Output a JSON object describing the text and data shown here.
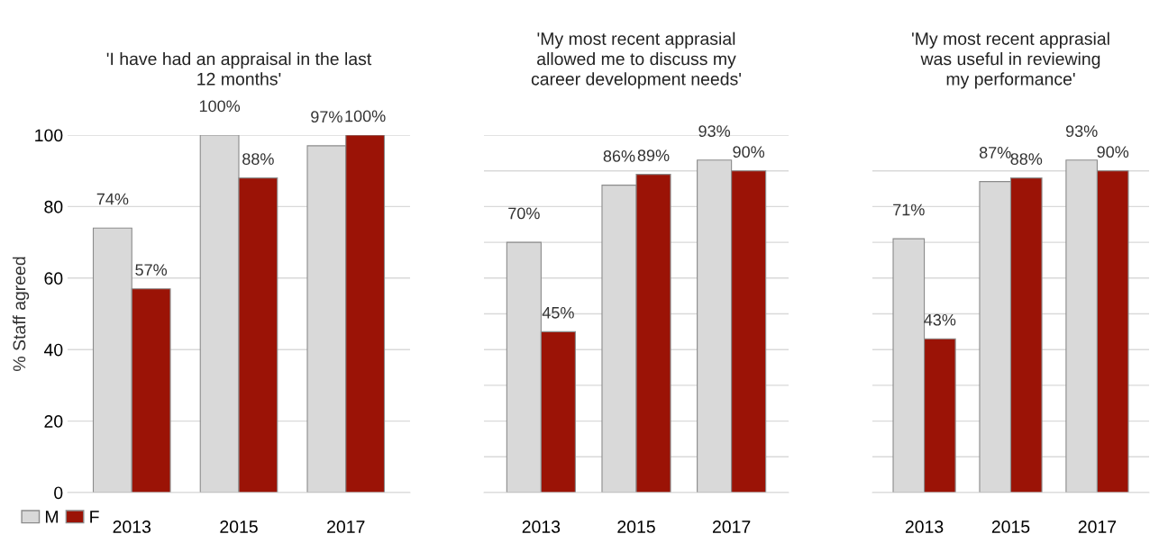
{
  "chart_data": [
    {
      "type": "bar",
      "title": "'I have had an appraisal in the last\n12 months'",
      "ylabel": "% Staff agreed",
      "categories": [
        "2013",
        "2015",
        "2017"
      ],
      "series": [
        {
          "name": "M",
          "color": "#d9d9d9",
          "values": [
            74,
            100,
            97
          ],
          "value_labels": [
            "74%",
            "100%",
            "97%"
          ]
        },
        {
          "name": "F",
          "color": "#9b1306",
          "values": [
            57,
            88,
            100
          ],
          "value_labels": [
            "57%",
            "88%",
            "100%"
          ]
        }
      ],
      "ylim": [
        0,
        100
      ],
      "yticks": [
        0,
        20,
        40,
        60,
        80,
        100
      ],
      "grid": "y",
      "legend": "bottom left"
    },
    {
      "type": "bar",
      "title": "'My most recent apprasial\nallowed me to discuss my\ncareer development needs'",
      "categories": [
        "2013",
        "2015",
        "2017"
      ],
      "series": [
        {
          "color": "#d9d9d9",
          "values": [
            70,
            86,
            93
          ],
          "value_labels": [
            "70%",
            "86%",
            "93%"
          ]
        },
        {
          "color": "#9b1306",
          "values": [
            45,
            89,
            90
          ],
          "value_labels": [
            "45%",
            "89%",
            "90%"
          ]
        }
      ],
      "ylim": [
        0,
        100
      ],
      "yticks": [
        {
          "value": 0,
          "label": null
        },
        {
          "value": 10,
          "label": null
        },
        {
          "value": 20,
          "label": null
        },
        {
          "value": 30,
          "label": null
        },
        {
          "value": 40,
          "label": null
        },
        {
          "value": 50,
          "label": null
        },
        {
          "value": 60,
          "label": null
        },
        {
          "value": 70,
          "label": null
        },
        {
          "value": 80,
          "label": null
        },
        {
          "value": 90,
          "label": null
        },
        {
          "value": 100,
          "label": null
        }
      ],
      "grid": "y",
      "tick_labels": "x"
    },
    {
      "type": "bar",
      "title": "'My most recent apprasial\nwas useful in reviewing\nmy performance'",
      "categories": [
        "2013",
        "2015",
        "2017"
      ],
      "series": [
        {
          "color": "#d9d9d9",
          "values": [
            71,
            87,
            93
          ],
          "value_labels": [
            "71%",
            "87%",
            "93%"
          ]
        },
        {
          "color": "#9b1306",
          "values": [
            43,
            88,
            90
          ],
          "value_labels": [
            "43%",
            "88%",
            "90%"
          ]
        }
      ],
      "ylim": [
        0,
        100
      ],
      "yticks": [
        {
          "value": 0,
          "label": null
        },
        {
          "value": 10,
          "label": null
        },
        {
          "value": 20,
          "label": null
        },
        {
          "value": 30,
          "label": null
        },
        {
          "value": 40,
          "label": null
        },
        {
          "value": 50,
          "label": null
        },
        {
          "value": 60,
          "label": null
        },
        {
          "value": 70,
          "label": null
        },
        {
          "value": 80,
          "label": null
        },
        {
          "value": 90,
          "label": null
        }
      ],
      "grid": "y",
      "tick_labels": "x"
    }
  ]
}
